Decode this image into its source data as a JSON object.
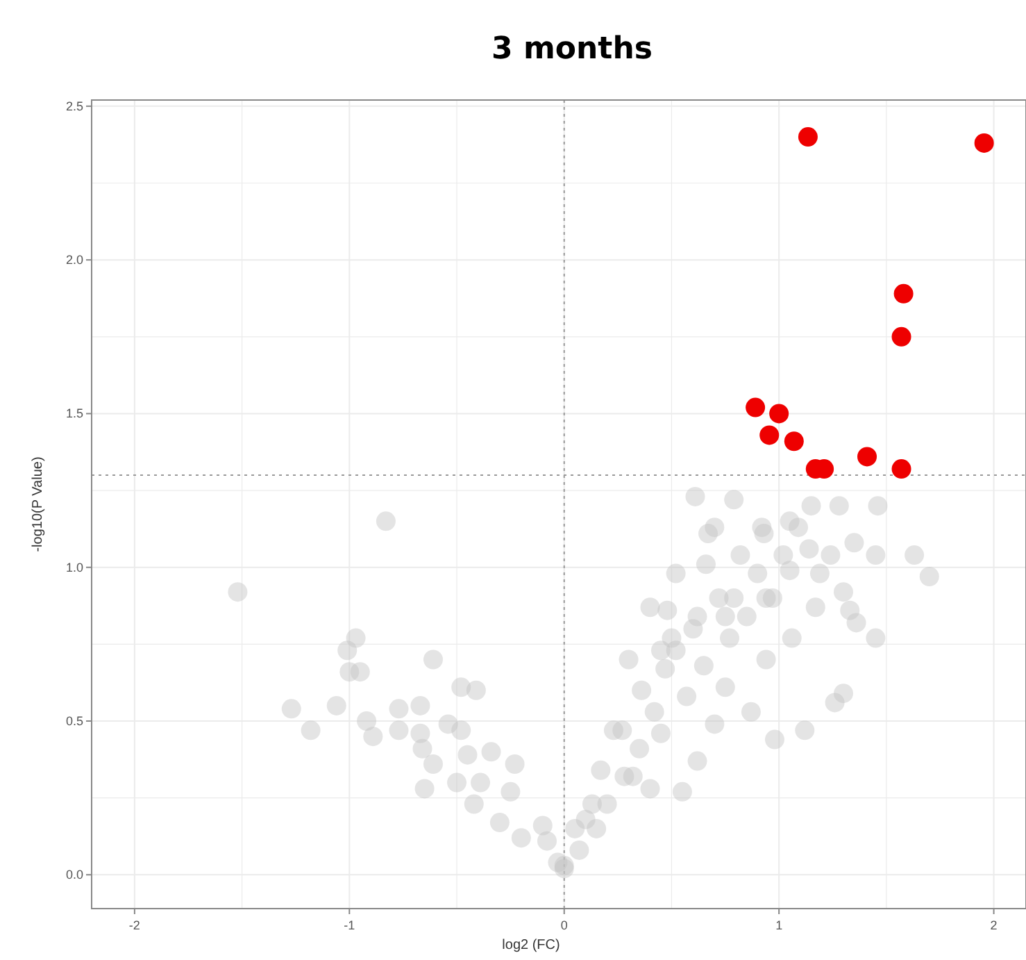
{
  "chart_data": {
    "type": "scatter",
    "title": "3 months",
    "xlabel": "log2 (FC)",
    "ylabel": "-log10(P Value)",
    "xlim": [
      -2.2,
      2.15
    ],
    "ylim": [
      -0.11,
      2.52
    ],
    "xticks": [
      -2,
      -1,
      0,
      1,
      2
    ],
    "yticks": [
      {
        "value": 0,
        "label": "0.0"
      },
      {
        "value": 0.5,
        "label": "0.5"
      },
      {
        "value": 1,
        "label": "1.0"
      },
      {
        "value": 1.5,
        "label": "1.5"
      },
      {
        "value": 2,
        "label": "2.0"
      },
      {
        "value": 2.5,
        "label": "2.5"
      }
    ],
    "grid": true,
    "marker": "circle",
    "ref_lines": [
      {
        "axis": "x",
        "value": 0,
        "line_style": "dotted",
        "color": "#999999"
      },
      {
        "axis": "y",
        "value": 1.3,
        "line_style": "dotted",
        "color": "#999999"
      }
    ],
    "series": [
      {
        "color": "#c4c4c4",
        "x": [
          -1.52,
          -0.83,
          -0.97,
          -1.01,
          -1.0,
          -0.95,
          -0.61,
          -1.27,
          -1.18,
          -1.06,
          -0.92,
          -0.89,
          -0.77,
          -0.77,
          -0.67,
          -0.67,
          -0.66,
          -0.61,
          -0.54,
          -0.48,
          -0.48,
          -0.41,
          -0.45,
          -0.34,
          -0.5,
          -0.39,
          -0.23,
          -0.25,
          -0.65,
          -0.42,
          -0.3,
          -0.2,
          -0.1,
          -0.08,
          0.0,
          -0.03,
          0.0,
          0.07,
          0.15,
          0.2,
          0.27,
          0.3,
          0.32,
          0.35,
          0.36,
          0.42,
          0.45,
          0.47,
          0.48,
          0.52,
          0.55,
          0.57,
          0.6,
          0.61,
          0.62,
          0.65,
          0.66,
          0.67,
          0.7,
          0.72,
          0.75,
          0.77,
          0.79,
          0.82,
          0.85,
          0.87,
          0.9,
          0.93,
          0.94,
          0.97,
          0.98,
          1.02,
          1.05,
          1.06,
          1.09,
          1.12,
          1.15,
          1.17,
          1.19,
          1.24,
          1.26,
          1.28,
          1.3,
          1.3,
          1.33,
          1.35,
          1.36,
          1.45,
          1.46,
          1.45,
          1.63,
          1.7,
          0.4,
          0.52,
          0.7,
          0.92,
          1.05,
          0.79,
          0.62,
          0.5,
          0.23,
          0.17,
          0.1,
          0.28,
          0.4,
          0.45,
          0.75,
          0.94,
          1.14,
          0.05,
          0.13
        ],
        "values": [
          0.92,
          1.15,
          0.77,
          0.73,
          0.66,
          0.66,
          0.7,
          0.54,
          0.47,
          0.55,
          0.5,
          0.45,
          0.54,
          0.47,
          0.55,
          0.46,
          0.41,
          0.36,
          0.49,
          0.47,
          0.61,
          0.6,
          0.39,
          0.4,
          0.3,
          0.3,
          0.36,
          0.27,
          0.28,
          0.23,
          0.17,
          0.12,
          0.16,
          0.11,
          0.02,
          0.04,
          0.03,
          0.08,
          0.15,
          0.23,
          0.47,
          0.7,
          0.32,
          0.41,
          0.6,
          0.53,
          0.46,
          0.67,
          0.86,
          0.73,
          0.27,
          0.58,
          0.8,
          1.23,
          0.37,
          0.68,
          1.01,
          1.11,
          0.49,
          0.9,
          0.61,
          0.77,
          1.22,
          1.04,
          0.84,
          0.53,
          0.98,
          1.11,
          0.7,
          0.9,
          0.44,
          1.04,
          0.99,
          0.77,
          1.13,
          0.47,
          1.2,
          0.87,
          0.98,
          1.04,
          0.56,
          1.2,
          0.92,
          0.59,
          0.86,
          1.08,
          0.82,
          1.04,
          1.2,
          0.77,
          1.04,
          0.97,
          0.87,
          0.98,
          1.13,
          1.13,
          1.15,
          0.9,
          0.84,
          0.77,
          0.47,
          0.34,
          0.18,
          0.32,
          0.28,
          0.73,
          0.84,
          0.9,
          1.06,
          0.15,
          0.23
        ]
      },
      {
        "color": "#ee0000",
        "x": [
          1.135,
          1.955,
          1.58,
          1.57,
          0.89,
          1.0,
          0.955,
          1.07,
          1.17,
          1.21,
          1.41,
          1.57
        ],
        "values": [
          2.4,
          2.38,
          1.89,
          1.75,
          1.52,
          1.5,
          1.43,
          1.41,
          1.32,
          1.32,
          1.36,
          1.32
        ]
      }
    ]
  }
}
